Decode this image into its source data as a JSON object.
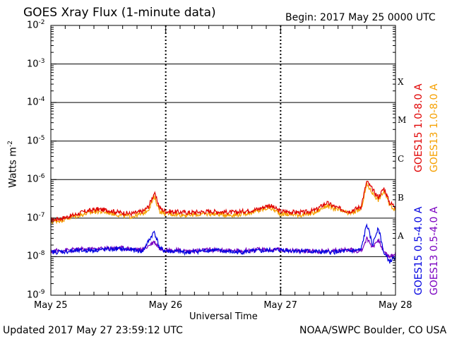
{
  "header": {
    "title": "GOES Xray Flux (1-minute data)",
    "begin": "Begin:  2017 May 25 0000 UTC"
  },
  "footer": {
    "updated": "Updated 2017 May 27 23:59:12 UTC",
    "source": "NOAA/SWPC Boulder, CO USA"
  },
  "colors": {
    "goes15_long": "#e00000",
    "goes13_long": "#f5a000",
    "goes15_short": "#0000e0",
    "goes13_short": "#7a00c0"
  },
  "chart_data": {
    "type": "line",
    "title": "GOES Xray Flux (1-minute data)",
    "xlabel": "Universal Time",
    "ylabel": "Watts m",
    "ylabel_sup": "-2",
    "yscale": "log",
    "ylim": [
      1e-09,
      0.01
    ],
    "xlim_days": [
      0,
      3
    ],
    "x_ticks": [
      "May 25",
      "May 26",
      "May 27",
      "May 28"
    ],
    "y_ticks": [
      {
        "base": "10",
        "exp": "-2"
      },
      {
        "base": "10",
        "exp": "-3"
      },
      {
        "base": "10",
        "exp": "-4"
      },
      {
        "base": "10",
        "exp": "-5"
      },
      {
        "base": "10",
        "exp": "-6"
      },
      {
        "base": "10",
        "exp": "-7"
      },
      {
        "base": "10",
        "exp": "-8"
      },
      {
        "base": "10",
        "exp": "-9"
      }
    ],
    "flare_classes": [
      "X",
      "M",
      "C",
      "B",
      "A"
    ],
    "grid": "horizontal",
    "legend": "right",
    "series": [
      {
        "name": "GOES15 1.0-8.0 A",
        "x": [
          0,
          0.1,
          0.2,
          0.3,
          0.4,
          0.5,
          0.6,
          0.7,
          0.8,
          0.85,
          0.9,
          0.95,
          1.0,
          1.2,
          1.4,
          1.6,
          1.8,
          1.9,
          2.0,
          2.2,
          2.3,
          2.4,
          2.5,
          2.6,
          2.7,
          2.75,
          2.8,
          2.85,
          2.9,
          2.95,
          3.0
        ],
        "values": [
          9e-08,
          1e-07,
          1.2e-07,
          1.5e-07,
          1.7e-07,
          1.6e-07,
          1.4e-07,
          1.3e-07,
          1.5e-07,
          2e-07,
          4.5e-07,
          1.8e-07,
          1.5e-07,
          1.4e-07,
          1.5e-07,
          1.4e-07,
          1.7e-07,
          2.2e-07,
          1.5e-07,
          1.4e-07,
          1.6e-07,
          2.5e-07,
          1.8e-07,
          1.5e-07,
          2e-07,
          9e-07,
          5.5e-07,
          3.5e-07,
          6e-07,
          2.5e-07,
          2e-07
        ]
      },
      {
        "name": "GOES13 1.0-8.0 A",
        "x": [
          0,
          0.1,
          0.2,
          0.3,
          0.4,
          0.5,
          0.6,
          0.7,
          0.8,
          0.85,
          0.9,
          0.95,
          1.0,
          1.2,
          1.4,
          1.6,
          1.8,
          1.9,
          2.0,
          2.2,
          2.3,
          2.4,
          2.5,
          2.6,
          2.7,
          2.75,
          2.8,
          2.85,
          2.9,
          2.95,
          3.0
        ],
        "values": [
          8e-08,
          9e-08,
          1.1e-07,
          1.3e-07,
          1.5e-07,
          1.4e-07,
          1.2e-07,
          1.1e-07,
          1.3e-07,
          1.7e-07,
          3.5e-07,
          1.5e-07,
          1.3e-07,
          1.2e-07,
          1.3e-07,
          1.2e-07,
          1.5e-07,
          1.9e-07,
          1.3e-07,
          1.2e-07,
          1.4e-07,
          2.1e-07,
          1.6e-07,
          1.3e-07,
          1.7e-07,
          7.5e-07,
          4.5e-07,
          3e-07,
          5e-07,
          2.2e-07,
          1.7e-07
        ]
      },
      {
        "name": "GOES15 0.5-4.0 A",
        "x": [
          0,
          0.2,
          0.4,
          0.6,
          0.8,
          0.9,
          0.95,
          1.0,
          1.2,
          1.4,
          1.6,
          1.8,
          2.0,
          2.2,
          2.4,
          2.6,
          2.7,
          2.75,
          2.8,
          2.85,
          2.9,
          2.95,
          3.0
        ],
        "values": [
          1.3e-08,
          1.4e-08,
          1.5e-08,
          1.6e-08,
          1.4e-08,
          4.5e-08,
          1.6e-08,
          1.4e-08,
          1.3e-08,
          1.5e-08,
          1.3e-08,
          1.4e-08,
          1.5e-08,
          1.4e-08,
          1.3e-08,
          1.4e-08,
          1.5e-08,
          7e-08,
          2e-08,
          6e-08,
          1.2e-08,
          7.5e-09,
          1e-08
        ]
      },
      {
        "name": "GOES13 0.5-4.0 A",
        "x": [
          0,
          0.2,
          0.4,
          0.6,
          0.8,
          0.9,
          0.95,
          1.0,
          1.2,
          1.4,
          1.6,
          1.8,
          2.0,
          2.2,
          2.4,
          2.6,
          2.7,
          2.75,
          2.8,
          2.85,
          2.9,
          2.95,
          3.0
        ],
        "values": [
          1.4e-08,
          1.5e-08,
          1.6e-08,
          1.7e-08,
          1.5e-08,
          2.5e-08,
          1.6e-08,
          1.5e-08,
          1.4e-08,
          1.5e-08,
          1.4e-08,
          1.5e-08,
          1.5e-08,
          1.4e-08,
          1.4e-08,
          1.5e-08,
          1.4e-08,
          3e-08,
          1.8e-08,
          2.8e-08,
          1.3e-08,
          1e-08,
          1.2e-08
        ]
      }
    ]
  }
}
